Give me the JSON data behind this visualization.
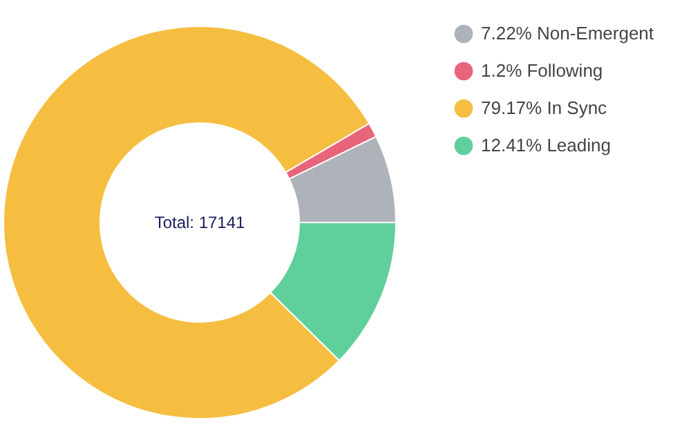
{
  "chart_data": {
    "type": "donut",
    "categories": [
      "7.22% Non-Emergent",
      "1.2% Following",
      "79.17% In Sync",
      "12.41% Leading"
    ],
    "values": [
      7.22,
      1.2,
      79.17,
      12.41
    ],
    "colors": [
      "#aeb3b9",
      "#e8647b",
      "#f5be41",
      "#5fcf9c"
    ],
    "annotations": [
      "Total: 17141"
    ],
    "legend": "right"
  }
}
